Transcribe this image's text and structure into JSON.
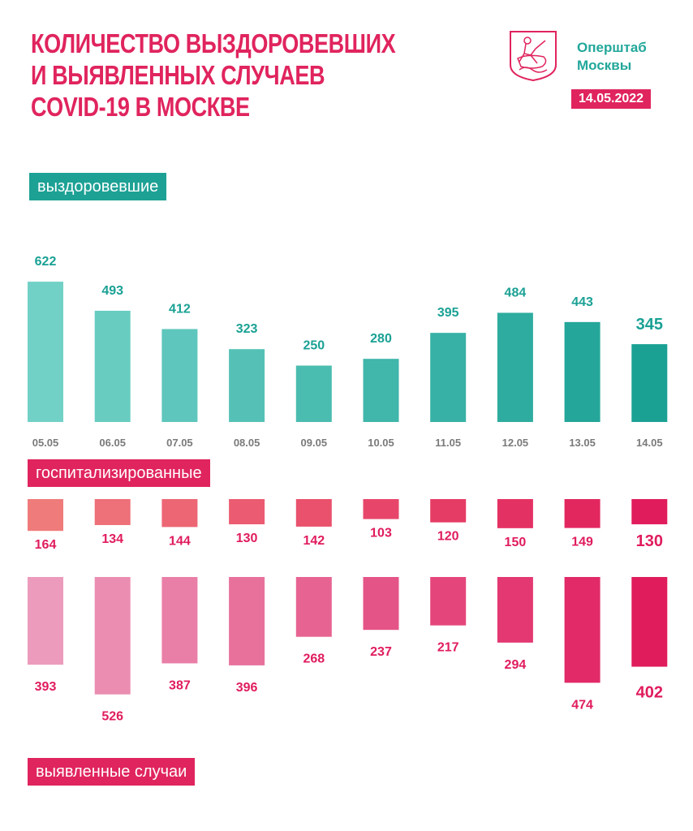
{
  "header": {
    "title_lines": [
      "КОЛИЧЕСТВО ВЫЗДОРОВЕВШИХ",
      "И ВЫЯВЛЕННЫХ СЛУЧАЕВ",
      "COVID-19 В МОСКВЕ"
    ],
    "org_lines": [
      "Оперштаб",
      "Москвы"
    ],
    "date": "14.05.2022",
    "logo_icon": "moscow-coat-of-arms-icon"
  },
  "labels": {
    "recovered": "выздоровевшие",
    "hospitalized": "госпитализированные",
    "cases": "выявленные случаи"
  },
  "colors": {
    "accent_pink": "#e0245e",
    "accent_teal": "#1da195",
    "teal_light": "#72d1c7",
    "teal_dark": "#1aa194",
    "pink_light": "#f07b7b",
    "pink_dark": "#e01c5c",
    "cases_light": "#ec9bbc",
    "cases_dark": "#e01c5c"
  },
  "chart_data": [
    {
      "type": "bar",
      "name_label": "выздоровевшие",
      "categories": [
        "05.05",
        "06.05",
        "07.05",
        "08.05",
        "09.05",
        "10.05",
        "11.05",
        "12.05",
        "13.05",
        "14.05"
      ],
      "values": [
        622,
        493,
        412,
        323,
        250,
        280,
        395,
        484,
        443,
        345
      ]
    },
    {
      "type": "bar",
      "name_label": "госпитализированные",
      "categories": [
        "05.05",
        "06.05",
        "07.05",
        "08.05",
        "09.05",
        "10.05",
        "11.05",
        "12.05",
        "13.05",
        "14.05"
      ],
      "values": [
        164,
        134,
        144,
        130,
        142,
        103,
        120,
        150,
        149,
        130
      ]
    },
    {
      "type": "bar",
      "name_label": "выявленные случаи",
      "categories": [
        "05.05",
        "06.05",
        "07.05",
        "08.05",
        "09.05",
        "10.05",
        "11.05",
        "12.05",
        "13.05",
        "14.05"
      ],
      "values": [
        393,
        526,
        387,
        396,
        268,
        237,
        217,
        294,
        474,
        402
      ]
    }
  ]
}
